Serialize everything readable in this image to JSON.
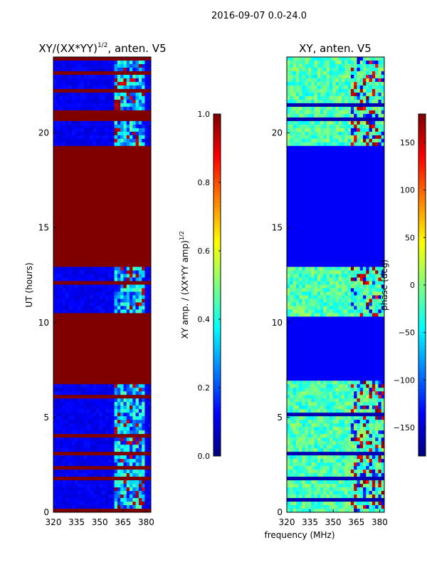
{
  "figure": {
    "suptitle": "2016-09-07 0.0-24.0",
    "xlabel_shared": "frequency (MHz)"
  },
  "chart_data": [
    {
      "type": "heatmap",
      "title_main": "XY/(XX*YY)",
      "title_exp": "1/2",
      "title_tail": ", anten. V5",
      "xlabel": "",
      "ylabel": "UT (hours)",
      "xlim": [
        320,
        383
      ],
      "ylim": [
        0,
        24
      ],
      "xticks": [
        "320",
        "335",
        "350",
        "365",
        "380"
      ],
      "xtick_values": [
        320,
        335,
        350,
        365,
        380
      ],
      "yticks": [
        "0",
        "5",
        "10",
        "15",
        "20"
      ],
      "ytick_values": [
        0,
        5,
        10,
        15,
        20
      ],
      "colorbar": {
        "label_main": "XY amp. / (XX*YY amp)",
        "label_exp": "1/2",
        "range": [
          0.0,
          1.0
        ],
        "ticks": [
          "0.0",
          "0.2",
          "0.4",
          "0.6",
          "0.8",
          "1.0"
        ],
        "tick_values": [
          0.0,
          0.2,
          0.4,
          0.6,
          0.8,
          1.0
        ]
      },
      "colormap": "jet",
      "saturated_bands_hours": [
        [
          8.0,
          10.3
        ],
        [
          12.9,
          19.3
        ],
        [
          6.9,
          8.0
        ]
      ],
      "active_band_mhz": [
        359,
        380
      ]
    },
    {
      "type": "heatmap",
      "title": "XY, anten. V5",
      "xlabel": "frequency (MHz)",
      "ylabel": "",
      "xlim": [
        320,
        383
      ],
      "ylim": [
        0,
        24
      ],
      "xticks": [
        "320",
        "335",
        "350",
        "365",
        "380"
      ],
      "xtick_values": [
        320,
        335,
        350,
        365,
        380
      ],
      "yticks": [
        "0",
        "5",
        "10",
        "15",
        "20"
      ],
      "ytick_values": [
        0,
        5,
        10,
        15,
        20
      ],
      "colorbar": {
        "label": "phase (deg)",
        "range": [
          -180,
          180
        ],
        "ticks": [
          "−150",
          "−100",
          "−50",
          "0",
          "50",
          "100",
          "150"
        ],
        "tick_values": [
          -150,
          -100,
          -50,
          0,
          50,
          100,
          150
        ]
      },
      "colormap": "jet",
      "flat_bands_hours": [
        [
          8.0,
          10.3
        ],
        [
          12.9,
          19.3
        ],
        [
          6.9,
          8.0
        ]
      ]
    }
  ]
}
